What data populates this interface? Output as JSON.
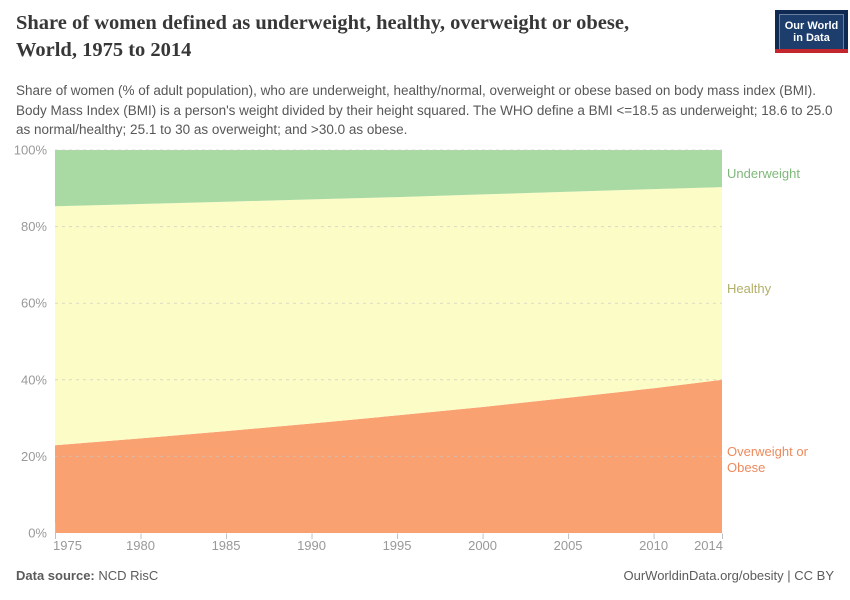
{
  "header": {
    "title_lines": [
      "Share of women defined as underweight, healthy, overweight or obese,",
      "World, 1975 to 2014"
    ],
    "subtitle": "Share of women (% of adult population), who are underweight, healthy/normal, overweight or obese based on body mass index (BMI). Body Mass Index (BMI) is a person's weight divided by their height squared. The WHO define a BMI <=18.5 as underweight; 18.6 to 25.0 as normal/healthy; 25.1 to 30 as overweight; and >30.0 as obese."
  },
  "logo": {
    "line1": "Our World",
    "line2": "in Data"
  },
  "footer": {
    "source_label": "Data source:",
    "source_value": "NCD RisC",
    "credit": "OurWorldinData.org/obesity | CC BY"
  },
  "colors": {
    "axis_text": "#999999",
    "tick_mark": "#c0c0c0",
    "gridline": "#c8c8c8",
    "logo_background": "#0e2a52",
    "logo_red_bar": "#c4262e"
  },
  "chart_data": {
    "type": "area",
    "stacked": true,
    "title": "Share of women defined as underweight, healthy, overweight or obese, World, 1975 to 2014",
    "xlabel": "",
    "ylabel": "",
    "xlim": [
      1975,
      2014
    ],
    "ylim": [
      0,
      100
    ],
    "grid": "dashed-horizontal",
    "legend_position": "right-of-plot",
    "x": [
      1975,
      1980,
      1985,
      1990,
      1995,
      2000,
      2005,
      2010,
      2014
    ],
    "series": [
      {
        "name": "Overweight or Obese",
        "color": "#faa172",
        "label_color": "#ec8a5e",
        "values": [
          22.9,
          24.7,
          26.6,
          28.6,
          30.7,
          32.9,
          35.3,
          37.8,
          40.0
        ]
      },
      {
        "name": "Healthy",
        "color": "#fcfcc7",
        "label_color": "#b2af68",
        "values": [
          62.4,
          61.2,
          59.9,
          58.5,
          57.0,
          55.5,
          53.8,
          52.0,
          50.3
        ]
      },
      {
        "name": "Underweight",
        "color": "#aadaa3",
        "label_color": "#7fb87a",
        "values": [
          14.7,
          14.1,
          13.5,
          12.9,
          12.3,
          11.6,
          10.9,
          10.2,
          9.7
        ]
      }
    ],
    "xticks": [
      {
        "value": 1975,
        "label": "1975"
      },
      {
        "value": 1980,
        "label": "1980"
      },
      {
        "value": 1985,
        "label": "1985"
      },
      {
        "value": 1990,
        "label": "1990"
      },
      {
        "value": 1995,
        "label": "1995"
      },
      {
        "value": 2000,
        "label": "2000"
      },
      {
        "value": 2005,
        "label": "2005"
      },
      {
        "value": 2010,
        "label": "2010"
      },
      {
        "value": 2014,
        "label": "2014"
      }
    ],
    "yticks": [
      {
        "value": 0,
        "label": "0%"
      },
      {
        "value": 20,
        "label": "20%"
      },
      {
        "value": 40,
        "label": "40%"
      },
      {
        "value": 60,
        "label": "60%"
      },
      {
        "value": 80,
        "label": "80%"
      },
      {
        "value": 100,
        "label": "100%"
      }
    ]
  }
}
